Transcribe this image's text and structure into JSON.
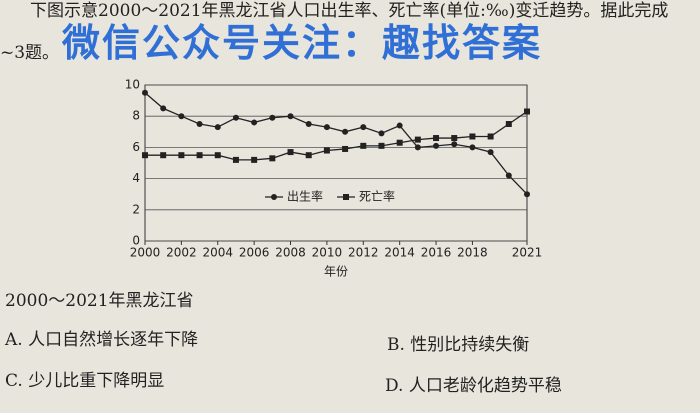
{
  "intro": "下图示意2000～2021年黑龙江省人口出生率、死亡率(单位:‰)变迁趋势。据此完成",
  "intro_2": "~3题。",
  "watermark": "微信公众号关注：趣找答案",
  "question": "2000～2021年黑龙江省",
  "options": [
    "A. 人口自然增长逐年下降",
    "B. 性别比持续失衡",
    "C. 少儿比重下降明显",
    "D. 人口老龄化趋势平稳"
  ],
  "chart_data": {
    "type": "line",
    "x_label": "年份",
    "x": [
      2000,
      2001,
      2002,
      2003,
      2004,
      2005,
      2006,
      2007,
      2008,
      2009,
      2010,
      2011,
      2012,
      2013,
      2014,
      2015,
      2016,
      2017,
      2018,
      2019,
      2020,
      2021
    ],
    "series": [
      {
        "name": "出生率",
        "color": "#222222",
        "marker": "circle",
        "values": [
          9.5,
          8.5,
          8.0,
          7.5,
          7.3,
          7.9,
          7.6,
          7.9,
          8.0,
          7.5,
          7.3,
          7.0,
          7.3,
          6.9,
          7.4,
          6.0,
          6.1,
          6.2,
          6.0,
          5.7,
          4.2,
          3.0
        ]
      },
      {
        "name": "死亡率",
        "color": "#222222",
        "marker": "square",
        "values": [
          5.5,
          5.5,
          5.5,
          5.5,
          5.5,
          5.2,
          5.2,
          5.3,
          5.7,
          5.5,
          5.8,
          5.9,
          6.1,
          6.1,
          6.3,
          6.5,
          6.6,
          6.6,
          6.7,
          6.7,
          7.5,
          8.3
        ]
      }
    ],
    "xlim": [
      2000,
      2021
    ],
    "xticks": [
      2000,
      2002,
      2004,
      2006,
      2008,
      2010,
      2012,
      2014,
      2016,
      2018,
      2021
    ],
    "ylim": [
      0,
      10
    ],
    "yticks": [
      0,
      2,
      4,
      6,
      8,
      10
    ],
    "grid": true
  }
}
